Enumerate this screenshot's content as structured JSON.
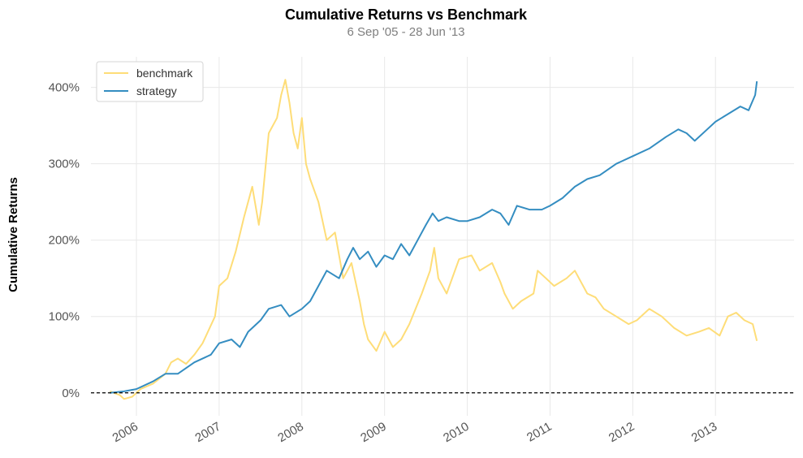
{
  "chart_data": {
    "type": "line",
    "title": "Cumulative Returns vs Benchmark",
    "subtitle": "6 Sep '05 - 28 Jun '13",
    "ylabel": "Cumulative Returns",
    "xlabel": "",
    "x_range": [
      2005.45,
      2013.95
    ],
    "ylim": [
      -30,
      440
    ],
    "yticks": [
      0,
      100,
      200,
      300,
      400
    ],
    "ytick_labels": [
      "0%",
      "100%",
      "200%",
      "300%",
      "400%"
    ],
    "xticks": [
      2006,
      2007,
      2008,
      2009,
      2010,
      2011,
      2012,
      2013
    ],
    "xtick_labels": [
      "2006",
      "2007",
      "2008",
      "2009",
      "2010",
      "2011",
      "2012",
      "2013"
    ],
    "grid": true,
    "zero_line": true,
    "legend": "top-left",
    "series": [
      {
        "name": "benchmark",
        "color": "#fedd78",
        "x": [
          2005.68,
          2005.8,
          2005.85,
          2005.95,
          2006.05,
          2006.2,
          2006.35,
          2006.42,
          2006.5,
          2006.6,
          2006.7,
          2006.8,
          2006.95,
          2007.0,
          2007.1,
          2007.2,
          2007.3,
          2007.4,
          2007.48,
          2007.52,
          2007.6,
          2007.7,
          2007.75,
          2007.8,
          2007.85,
          2007.9,
          2007.95,
          2008.0,
          2008.05,
          2008.1,
          2008.2,
          2008.3,
          2008.4,
          2008.5,
          2008.6,
          2008.7,
          2008.75,
          2008.8,
          2008.9,
          2009.0,
          2009.1,
          2009.2,
          2009.3,
          2009.45,
          2009.55,
          2009.6,
          2009.65,
          2009.75,
          2009.9,
          2010.05,
          2010.15,
          2010.3,
          2010.4,
          2010.45,
          2010.55,
          2010.65,
          2010.8,
          2010.85,
          2010.95,
          2011.05,
          2011.2,
          2011.3,
          2011.45,
          2011.55,
          2011.65,
          2011.8,
          2011.95,
          2012.05,
          2012.2,
          2012.35,
          2012.5,
          2012.65,
          2012.8,
          2012.92,
          2013.05,
          2013.15,
          2013.25,
          2013.35,
          2013.45,
          2013.5
        ],
        "y": [
          2,
          -3,
          -8,
          -5,
          5,
          12,
          25,
          40,
          45,
          38,
          50,
          65,
          100,
          140,
          150,
          185,
          230,
          270,
          220,
          250,
          340,
          360,
          390,
          410,
          380,
          340,
          320,
          360,
          300,
          280,
          250,
          200,
          210,
          150,
          170,
          120,
          90,
          70,
          55,
          80,
          60,
          70,
          90,
          130,
          160,
          190,
          150,
          130,
          175,
          180,
          160,
          170,
          145,
          130,
          110,
          120,
          130,
          160,
          150,
          140,
          150,
          160,
          130,
          125,
          110,
          100,
          90,
          95,
          110,
          100,
          85,
          75,
          80,
          85,
          75,
          100,
          105,
          95,
          90,
          68
        ]
      },
      {
        "name": "strategy",
        "color": "#348dc1",
        "x": [
          2005.68,
          2005.85,
          2006.0,
          2006.2,
          2006.35,
          2006.5,
          2006.7,
          2006.9,
          2007.0,
          2007.15,
          2007.25,
          2007.35,
          2007.5,
          2007.6,
          2007.75,
          2007.85,
          2008.0,
          2008.1,
          2008.2,
          2008.3,
          2008.45,
          2008.55,
          2008.62,
          2008.7,
          2008.8,
          2008.9,
          2009.0,
          2009.1,
          2009.2,
          2009.3,
          2009.4,
          2009.5,
          2009.58,
          2009.65,
          2009.75,
          2009.9,
          2010.0,
          2010.15,
          2010.3,
          2010.4,
          2010.5,
          2010.6,
          2010.75,
          2010.9,
          2011.0,
          2011.15,
          2011.3,
          2011.45,
          2011.6,
          2011.8,
          2012.0,
          2012.2,
          2012.4,
          2012.55,
          2012.65,
          2012.75,
          2012.9,
          2013.0,
          2013.15,
          2013.3,
          2013.4,
          2013.48,
          2013.5
        ],
        "y": [
          0,
          2,
          5,
          15,
          25,
          25,
          40,
          50,
          65,
          70,
          60,
          80,
          95,
          110,
          115,
          100,
          110,
          120,
          140,
          160,
          150,
          175,
          190,
          175,
          185,
          165,
          180,
          175,
          195,
          180,
          200,
          220,
          235,
          225,
          230,
          225,
          225,
          230,
          240,
          235,
          220,
          245,
          240,
          240,
          245,
          255,
          270,
          280,
          285,
          300,
          310,
          320,
          335,
          345,
          340,
          330,
          345,
          355,
          365,
          375,
          370,
          390,
          408
        ]
      }
    ]
  }
}
